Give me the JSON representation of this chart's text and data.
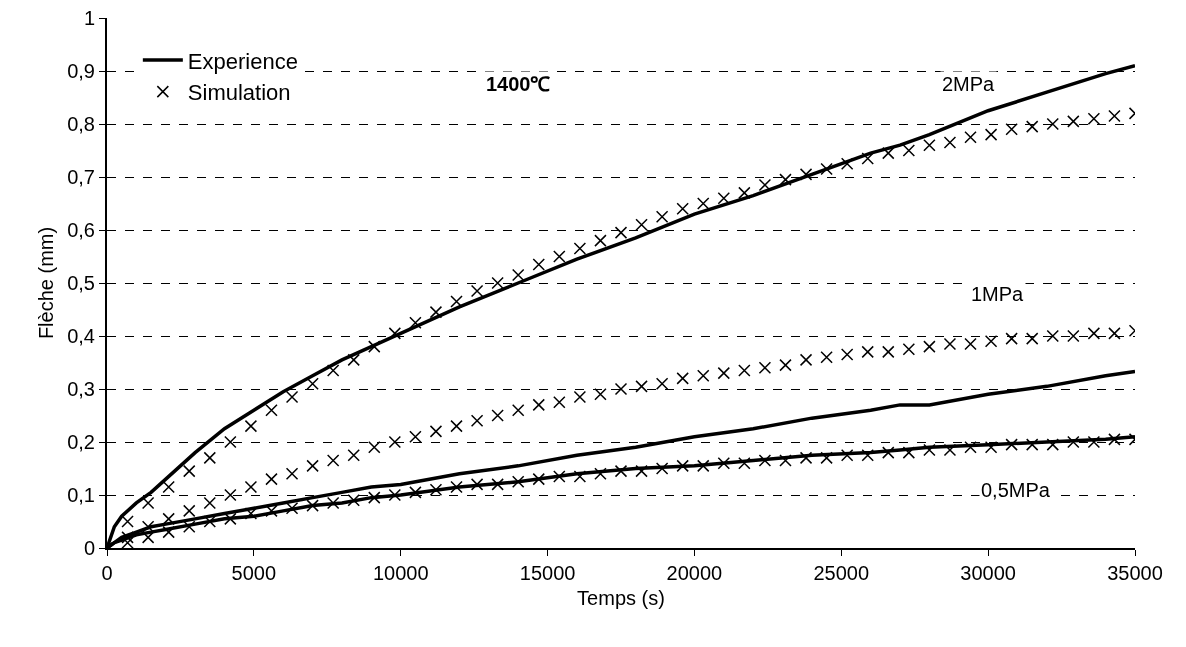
{
  "chart_data": {
    "type": "line",
    "xlabel": "Temps (s)",
    "ylabel": "Flèche (mm)",
    "xlim": [
      0,
      35000
    ],
    "xticks": [
      0,
      5000,
      10000,
      15000,
      20000,
      25000,
      30000,
      35000
    ],
    "ylim": [
      0,
      1
    ],
    "yticks": [
      0,
      {
        "value": 0.1,
        "label": "0,1"
      },
      {
        "value": 0.2,
        "label": "0,2"
      },
      {
        "value": 0.3,
        "label": "0,3"
      },
      {
        "value": 0.4,
        "label": "0,4"
      },
      {
        "value": 0.5,
        "label": "0,5"
      },
      {
        "value": 0.6,
        "label": "0,6"
      },
      {
        "value": 0.7,
        "label": "0,7"
      },
      {
        "value": 0.8,
        "label": "0,8"
      },
      {
        "value": 0.9,
        "label": "0,9"
      },
      1
    ],
    "grid": "y",
    "legend": "top left",
    "annotations": [
      "1400℃",
      "2MPa",
      "1MPa",
      "0,5MPa"
    ],
    "series": [
      {
        "name": "Experience",
        "marker": "none",
        "line_style": "solid",
        "color": "#000000",
        "x": [
          0,
          250,
          500,
          1000,
          1500,
          2000,
          3000,
          4000,
          5000,
          6000,
          7000,
          8000,
          9000,
          10000,
          12000,
          14000,
          16000,
          18000,
          20000,
          22000,
          24000,
          26000,
          27000,
          28000,
          30000,
          32000,
          34000,
          35000
        ],
        "values": [
          0,
          0.04,
          0.06,
          0.085,
          0.105,
          0.13,
          0.18,
          0.225,
          0.26,
          0.295,
          0.325,
          0.355,
          0.38,
          0.405,
          0.455,
          0.5,
          0.545,
          0.585,
          0.63,
          0.665,
          0.705,
          0.745,
          0.76,
          0.78,
          0.825,
          0.86,
          0.895,
          0.91
        ]
      },
      {
        "name": "Simulation",
        "type": "scatter",
        "marker": "cross",
        "color": "#000000",
        "x": [
          0,
          700,
          1400,
          2100,
          2800,
          3500,
          4200,
          4900,
          5600,
          6300,
          7000,
          7700,
          8400,
          9100,
          9800,
          10500,
          11200,
          11900,
          12600,
          13300,
          14000,
          14700,
          15400,
          16100,
          16800,
          17500,
          18200,
          18900,
          19600,
          20300,
          21000,
          21700,
          22400,
          23100,
          23800,
          24500,
          25200,
          25900,
          26600,
          27300,
          28000,
          28700,
          29400,
          30100,
          30800,
          31500,
          32200,
          32900,
          33600,
          34300,
          35000
        ],
        "values": [
          0,
          0.05,
          0.085,
          0.115,
          0.145,
          0.17,
          0.2,
          0.23,
          0.26,
          0.285,
          0.31,
          0.335,
          0.355,
          0.38,
          0.405,
          0.425,
          0.445,
          0.465,
          0.485,
          0.5,
          0.515,
          0.535,
          0.55,
          0.565,
          0.58,
          0.595,
          0.61,
          0.625,
          0.64,
          0.65,
          0.66,
          0.67,
          0.685,
          0.695,
          0.705,
          0.715,
          0.725,
          0.735,
          0.745,
          0.75,
          0.76,
          0.765,
          0.775,
          0.78,
          0.79,
          0.795,
          0.8,
          0.805,
          0.81,
          0.815,
          0.82
        ]
      },
      {
        "marker": "none",
        "line_style": "solid",
        "color": "#000000",
        "x": [
          0,
          250,
          500,
          1000,
          1500,
          2000,
          3000,
          4000,
          5000,
          6000,
          7000,
          8000,
          9000,
          10000,
          12000,
          14000,
          16000,
          18000,
          20000,
          22000,
          24000,
          26000,
          27000,
          28000,
          30000,
          32000,
          34000,
          35000
        ],
        "values": [
          0,
          0.01,
          0.02,
          0.03,
          0.04,
          0.045,
          0.055,
          0.065,
          0.075,
          0.085,
          0.095,
          0.105,
          0.115,
          0.12,
          0.14,
          0.155,
          0.175,
          0.19,
          0.21,
          0.225,
          0.245,
          0.26,
          0.27,
          0.27,
          0.29,
          0.305,
          0.325,
          0.333
        ]
      },
      {
        "type": "scatter",
        "marker": "cross",
        "color": "#000000",
        "x": [
          700,
          1400,
          2100,
          2800,
          3500,
          4200,
          4900,
          5600,
          6300,
          7000,
          7700,
          8400,
          9100,
          9800,
          10500,
          11200,
          11900,
          12600,
          13300,
          14000,
          14700,
          15400,
          16100,
          16800,
          17500,
          18200,
          18900,
          19600,
          20300,
          21000,
          21700,
          22400,
          23100,
          23800,
          24500,
          25200,
          25900,
          26600,
          27300,
          28000,
          28700,
          29400,
          30100,
          30800,
          31500,
          32200,
          32900,
          33600,
          34300,
          35000
        ],
        "values": [
          0.02,
          0.04,
          0.055,
          0.07,
          0.085,
          0.1,
          0.115,
          0.13,
          0.14,
          0.155,
          0.165,
          0.175,
          0.19,
          0.2,
          0.21,
          0.22,
          0.23,
          0.24,
          0.25,
          0.26,
          0.27,
          0.275,
          0.285,
          0.29,
          0.3,
          0.305,
          0.31,
          0.32,
          0.325,
          0.33,
          0.335,
          0.34,
          0.345,
          0.355,
          0.36,
          0.365,
          0.37,
          0.37,
          0.375,
          0.38,
          0.385,
          0.385,
          0.39,
          0.395,
          0.395,
          0.4,
          0.4,
          0.405,
          0.405,
          0.41
        ]
      },
      {
        "marker": "none",
        "line_style": "solid",
        "color": "#000000",
        "x": [
          0,
          250,
          500,
          1000,
          1500,
          2000,
          3000,
          4000,
          5000,
          6000,
          7000,
          8000,
          9000,
          10000,
          12000,
          14000,
          16000,
          18000,
          20000,
          22000,
          24000,
          26000,
          27000,
          28000,
          30000,
          32000,
          34000,
          35000
        ],
        "values": [
          0,
          0.01,
          0.015,
          0.025,
          0.03,
          0.035,
          0.045,
          0.055,
          0.06,
          0.07,
          0.08,
          0.085,
          0.095,
          0.1,
          0.115,
          0.125,
          0.14,
          0.15,
          0.155,
          0.165,
          0.175,
          0.18,
          0.185,
          0.19,
          0.195,
          0.2,
          0.205,
          0.21
        ]
      },
      {
        "type": "scatter",
        "marker": "cross",
        "color": "#000000",
        "x": [
          700,
          1400,
          2100,
          2800,
          3500,
          4200,
          4900,
          5600,
          6300,
          7000,
          7700,
          8400,
          9100,
          9800,
          10500,
          11200,
          11900,
          12600,
          13300,
          14000,
          14700,
          15400,
          16100,
          16800,
          17500,
          18200,
          18900,
          19600,
          20300,
          21000,
          21700,
          22400,
          23100,
          23800,
          24500,
          25200,
          25900,
          26600,
          27300,
          28000,
          28700,
          29400,
          30100,
          30800,
          31500,
          32200,
          32900,
          33600,
          34300,
          35000
        ],
        "values": [
          0.01,
          0.02,
          0.03,
          0.04,
          0.05,
          0.055,
          0.065,
          0.07,
          0.075,
          0.08,
          0.085,
          0.09,
          0.095,
          0.1,
          0.105,
          0.11,
          0.115,
          0.12,
          0.12,
          0.125,
          0.13,
          0.135,
          0.135,
          0.14,
          0.145,
          0.145,
          0.15,
          0.155,
          0.155,
          0.16,
          0.16,
          0.165,
          0.165,
          0.17,
          0.17,
          0.175,
          0.175,
          0.18,
          0.18,
          0.185,
          0.185,
          0.19,
          0.19,
          0.195,
          0.195,
          0.195,
          0.2,
          0.2,
          0.205,
          0.205
        ]
      }
    ]
  }
}
